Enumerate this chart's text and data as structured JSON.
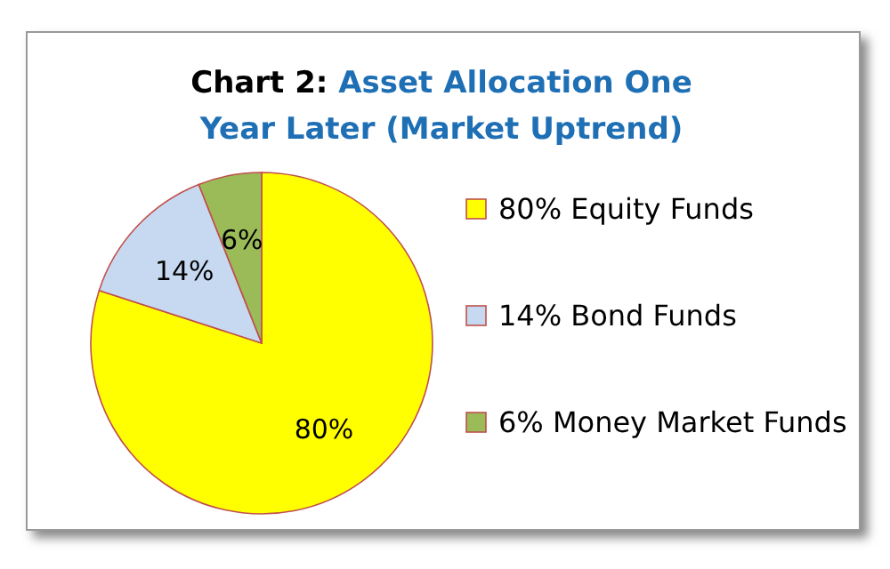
{
  "chart_data": {
    "type": "pie",
    "title": "Chart 2: Asset Allocation One Year Later (Market Uptrend)",
    "categories": [
      "80% Equity Funds",
      "14% Bond Funds",
      "6% Money Market Funds"
    ],
    "values": [
      80,
      14,
      6
    ],
    "colors": [
      "#ffff00",
      "#c6d9f1",
      "#9bbb59"
    ],
    "value_labels": [
      "80%",
      "14%",
      "6%"
    ],
    "legend": "right"
  }
}
